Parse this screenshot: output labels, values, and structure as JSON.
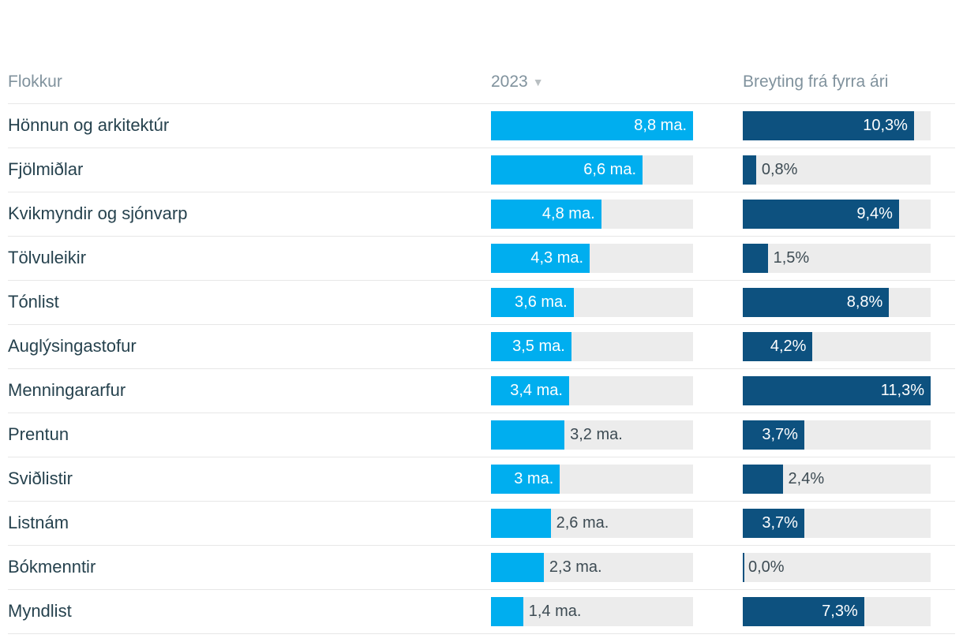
{
  "header": {
    "category_label": "Flokkur",
    "value_label": "2023",
    "sort_icon": "▼",
    "change_label": "Breyting frá fyrra ári"
  },
  "colors": {
    "value_bar": "#00aeef",
    "change_bar": "#0d517f",
    "bar_track": "#ececec",
    "inside_label": "#ffffff",
    "outside_label": "#3d4b53",
    "category_text": "#26424e",
    "header_text": "#80929d",
    "divider": "#e7e7e7"
  },
  "chart_data": {
    "type": "bar",
    "title": "",
    "categories": [
      "Hönnun og arkitektúr",
      "Fjölmiðlar",
      "Kvikmyndir og sjónvarp",
      "Tölvuleikir",
      "Tónlist",
      "Auglýsingastofur",
      "Menningararfur",
      "Prentun",
      "Sviðlistir",
      "Listnám",
      "Bókmenntir",
      "Myndlist"
    ],
    "series": [
      {
        "name": "2023",
        "unit": "ma.",
        "axis_max": 8.8,
        "values": [
          8.8,
          6.6,
          4.8,
          4.3,
          3.6,
          3.5,
          3.4,
          3.2,
          3.0,
          2.6,
          2.3,
          1.4
        ],
        "labels": [
          "8,8 ma.",
          "6,6 ma.",
          "4,8 ma.",
          "4,3 ma.",
          "3,6 ma.",
          "3,5 ma.",
          "3,4 ma.",
          "3,2 ma.",
          "3 ma.",
          "2,6 ma.",
          "2,3 ma.",
          "1,4 ma."
        ]
      },
      {
        "name": "Breyting frá fyrra ári",
        "unit": "%",
        "axis_max": 11.3,
        "values": [
          10.3,
          0.8,
          9.4,
          1.5,
          8.8,
          4.2,
          11.3,
          3.7,
          2.4,
          3.7,
          0.0,
          7.3
        ],
        "labels": [
          "10,3%",
          "0,8%",
          "9,4%",
          "1,5%",
          "8,8%",
          "4,2%",
          "11,3%",
          "3,7%",
          "2,4%",
          "3,7%",
          "0,0%",
          "7,3%"
        ]
      }
    ],
    "legend": "none",
    "grid": "off",
    "layout": "bar-table, bars sorted descending by 2023"
  },
  "rows": [
    {
      "category": "Hönnun og arkitektúr",
      "value": 8.8,
      "value_label": "8,8 ma.",
      "value_label_pos": "in",
      "change": 10.3,
      "change_label": "10,3%",
      "change_label_pos": "in"
    },
    {
      "category": "Fjölmiðlar",
      "value": 6.6,
      "value_label": "6,6 ma.",
      "value_label_pos": "in",
      "change": 0.8,
      "change_label": "0,8%",
      "change_label_pos": "out"
    },
    {
      "category": "Kvikmyndir og sjónvarp",
      "value": 4.8,
      "value_label": "4,8 ma.",
      "value_label_pos": "in",
      "change": 9.4,
      "change_label": "9,4%",
      "change_label_pos": "in"
    },
    {
      "category": "Tölvuleikir",
      "value": 4.3,
      "value_label": "4,3 ma.",
      "value_label_pos": "in",
      "change": 1.5,
      "change_label": "1,5%",
      "change_label_pos": "out"
    },
    {
      "category": "Tónlist",
      "value": 3.6,
      "value_label": "3,6 ma.",
      "value_label_pos": "in",
      "change": 8.8,
      "change_label": "8,8%",
      "change_label_pos": "in"
    },
    {
      "category": "Auglýsingastofur",
      "value": 3.5,
      "value_label": "3,5 ma.",
      "value_label_pos": "in",
      "change": 4.2,
      "change_label": "4,2%",
      "change_label_pos": "in"
    },
    {
      "category": "Menningararfur",
      "value": 3.4,
      "value_label": "3,4 ma.",
      "value_label_pos": "in",
      "change": 11.3,
      "change_label": "11,3%",
      "change_label_pos": "in"
    },
    {
      "category": "Prentun",
      "value": 3.2,
      "value_label": "3,2 ma.",
      "value_label_pos": "out",
      "change": 3.7,
      "change_label": "3,7%",
      "change_label_pos": "in"
    },
    {
      "category": "Sviðlistir",
      "value": 3.0,
      "value_label": "3 ma.",
      "value_label_pos": "in",
      "change": 2.4,
      "change_label": "2,4%",
      "change_label_pos": "out"
    },
    {
      "category": "Listnám",
      "value": 2.6,
      "value_label": "2,6 ma.",
      "value_label_pos": "out",
      "change": 3.7,
      "change_label": "3,7%",
      "change_label_pos": "in"
    },
    {
      "category": "Bókmenntir",
      "value": 2.3,
      "value_label": "2,3 ma.",
      "value_label_pos": "out",
      "change": 0.0,
      "change_label": "0,0%",
      "change_label_pos": "out"
    },
    {
      "category": "Myndlist",
      "value": 1.4,
      "value_label": "1,4 ma.",
      "value_label_pos": "out",
      "change": 7.3,
      "change_label": "7,3%",
      "change_label_pos": "in"
    }
  ]
}
